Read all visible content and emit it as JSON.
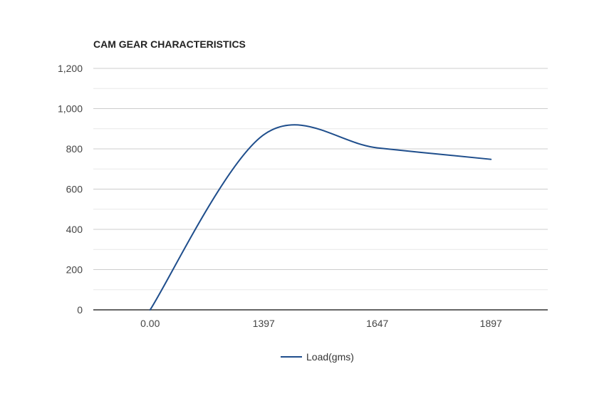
{
  "chart_data": {
    "type": "line",
    "title": "CAM GEAR CHARACTERISTICS",
    "xlabel": "",
    "ylabel": "",
    "categories": [
      "0.00",
      "1397",
      "1647",
      "1897"
    ],
    "series": [
      {
        "name": "Load(gms)",
        "values": [
          0,
          870,
          805,
          748
        ]
      }
    ],
    "ylim": [
      0,
      1200
    ],
    "yticks": [
      "0",
      "200",
      "400",
      "600",
      "800",
      "1,000",
      "1,200"
    ],
    "grid": true,
    "legend": "bottom",
    "colors": {
      "line": "#1f4e8c",
      "grid_major": "#cccccc",
      "grid_minor": "#e8e8e8",
      "axis": "#333333"
    }
  }
}
